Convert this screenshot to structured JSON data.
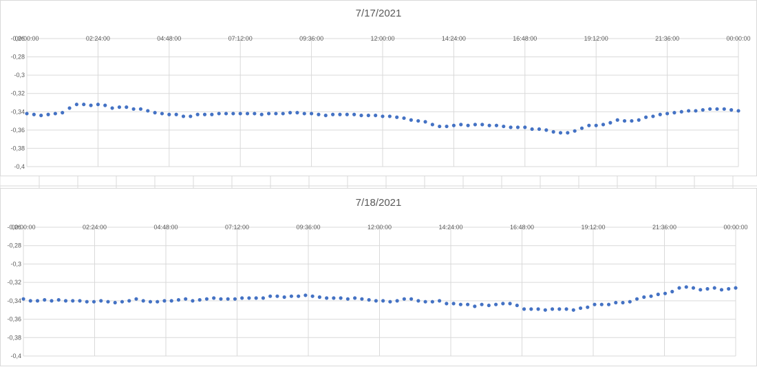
{
  "chart_data": [
    {
      "type": "scatter",
      "title": "7/17/2021",
      "x_tick_labels": [
        "00:00:00",
        "02:24:00",
        "04:48:00",
        "07:12:00",
        "09:36:00",
        "12:00:00",
        "14:24:00",
        "16:48:00",
        "19:12:00",
        "21:36:00",
        "00:00:00"
      ],
      "y_tick_labels": [
        "-0,26",
        "-0,28",
        "-0,3",
        "-0,32",
        "-0,34",
        "-0,36",
        "-0,38",
        "-0,4"
      ],
      "ylim": [
        -0.4,
        -0.26
      ],
      "xlim_hours": [
        0,
        24
      ],
      "grid": true,
      "color": "#4472C4",
      "y_values": [
        -0.342,
        -0.343,
        -0.344,
        -0.343,
        -0.342,
        -0.341,
        -0.336,
        -0.332,
        -0.332,
        -0.333,
        -0.332,
        -0.333,
        -0.336,
        -0.335,
        -0.335,
        -0.337,
        -0.337,
        -0.339,
        -0.341,
        -0.342,
        -0.343,
        -0.343,
        -0.345,
        -0.345,
        -0.343,
        -0.343,
        -0.343,
        -0.342,
        -0.342,
        -0.342,
        -0.342,
        -0.342,
        -0.342,
        -0.343,
        -0.342,
        -0.342,
        -0.342,
        -0.341,
        -0.341,
        -0.342,
        -0.342,
        -0.343,
        -0.344,
        -0.343,
        -0.343,
        -0.343,
        -0.343,
        -0.344,
        -0.344,
        -0.344,
        -0.345,
        -0.345,
        -0.346,
        -0.347,
        -0.349,
        -0.35,
        -0.351,
        -0.354,
        -0.356,
        -0.356,
        -0.355,
        -0.354,
        -0.355,
        -0.354,
        -0.354,
        -0.355,
        -0.355,
        -0.356,
        -0.357,
        -0.357,
        -0.357,
        -0.359,
        -0.359,
        -0.36,
        -0.362,
        -0.363,
        -0.363,
        -0.361,
        -0.358,
        -0.355,
        -0.355,
        -0.354,
        -0.352,
        -0.349,
        -0.35,
        -0.35,
        -0.349,
        -0.346,
        -0.345,
        -0.343,
        -0.342,
        -0.341,
        -0.34,
        -0.339,
        -0.339,
        -0.338,
        -0.337,
        -0.337,
        -0.337,
        -0.338,
        -0.339
      ]
    },
    {
      "type": "scatter",
      "title": "7/18/2021",
      "x_tick_labels": [
        "00:00:00",
        "02:24:00",
        "04:48:00",
        "07:12:00",
        "09:36:00",
        "12:00:00",
        "14:24:00",
        "16:48:00",
        "19:12:00",
        "21:36:00",
        "00:00:00"
      ],
      "y_tick_labels": [
        "-0,26",
        "-0,28",
        "-0,3",
        "-0,32",
        "-0,34",
        "-0,36",
        "-0,38",
        "-0,4"
      ],
      "ylim": [
        -0.4,
        -0.26
      ],
      "xlim_hours": [
        0,
        24
      ],
      "grid": true,
      "color": "#4472C4",
      "y_values": [
        -0.338,
        -0.34,
        -0.34,
        -0.339,
        -0.34,
        -0.339,
        -0.34,
        -0.34,
        -0.34,
        -0.341,
        -0.341,
        -0.34,
        -0.341,
        -0.342,
        -0.341,
        -0.34,
        -0.338,
        -0.34,
        -0.341,
        -0.341,
        -0.34,
        -0.34,
        -0.339,
        -0.338,
        -0.34,
        -0.339,
        -0.338,
        -0.337,
        -0.338,
        -0.338,
        -0.338,
        -0.337,
        -0.337,
        -0.337,
        -0.337,
        -0.335,
        -0.335,
        -0.336,
        -0.335,
        -0.335,
        -0.334,
        -0.335,
        -0.336,
        -0.337,
        -0.337,
        -0.337,
        -0.338,
        -0.337,
        -0.338,
        -0.339,
        -0.34,
        -0.34,
        -0.341,
        -0.34,
        -0.338,
        -0.338,
        -0.34,
        -0.341,
        -0.341,
        -0.34,
        -0.343,
        -0.343,
        -0.344,
        -0.344,
        -0.346,
        -0.344,
        -0.345,
        -0.344,
        -0.343,
        -0.343,
        -0.345,
        -0.349,
        -0.349,
        -0.349,
        -0.35,
        -0.349,
        -0.349,
        -0.349,
        -0.35,
        -0.348,
        -0.347,
        -0.344,
        -0.344,
        -0.344,
        -0.342,
        -0.342,
        -0.341,
        -0.338,
        -0.336,
        -0.335,
        -0.333,
        -0.332,
        -0.33,
        -0.326,
        -0.325,
        -0.326,
        -0.328,
        -0.327,
        -0.326,
        -0.328,
        -0.327,
        -0.326
      ]
    }
  ]
}
